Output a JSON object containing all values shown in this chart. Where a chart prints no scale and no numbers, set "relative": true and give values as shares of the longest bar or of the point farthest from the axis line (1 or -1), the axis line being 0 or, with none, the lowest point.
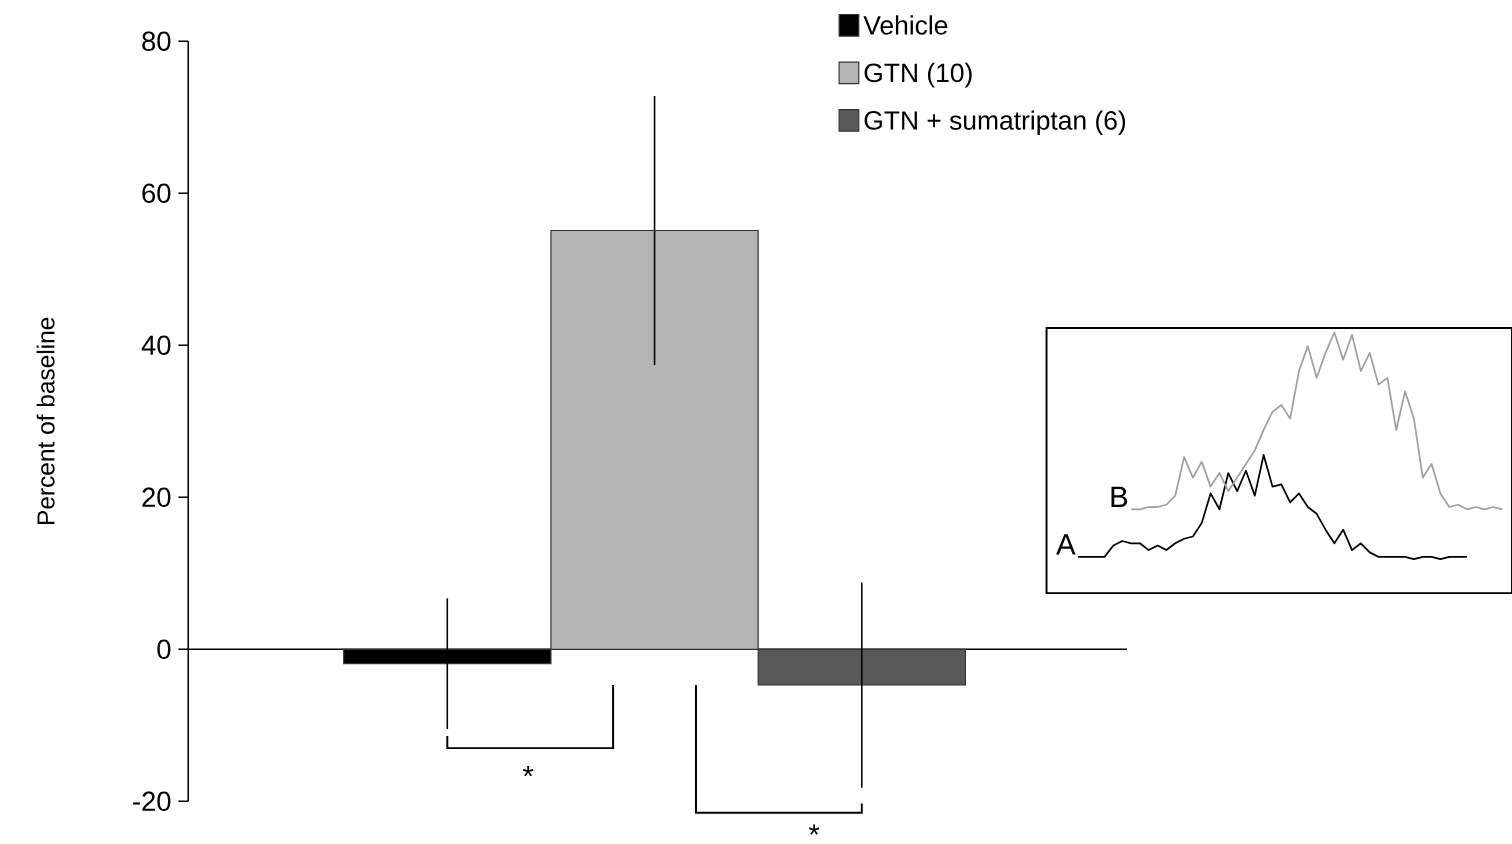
{
  "chart_data": [
    {
      "type": "bar",
      "ylabel": "Percent of baseline",
      "categories": [
        null,
        null,
        null
      ],
      "series": [
        {
          "name": "Vehicle",
          "color": "#000000",
          "values": [
            -1.9,
            null,
            null
          ],
          "errors": [
            8.6,
            null,
            null
          ]
        },
        {
          "name": "GTN (10)",
          "color": "#b4b4b4",
          "values": [
            null,
            55.1,
            null
          ],
          "errors": [
            null,
            17.7,
            null
          ]
        },
        {
          "name": "GTN + sumatriptan (6)",
          "color": "#595959",
          "values": [
            null,
            null,
            -4.7
          ],
          "errors": [
            null,
            null,
            13.5
          ]
        }
      ],
      "ylim": [
        -20,
        80
      ],
      "yticks": [
        -20,
        0,
        20,
        40,
        60,
        80
      ],
      "legend": "top right",
      "annotations": [
        "*",
        "*"
      ]
    },
    {
      "type": "line",
      "relative": true,
      "marker": "none",
      "line_style": "solid",
      "categories": [
        null,
        null,
        null,
        null,
        null,
        null,
        null,
        null,
        null,
        null,
        null,
        null,
        null,
        null,
        null,
        null,
        null,
        null,
        null,
        null,
        null,
        null,
        null,
        null,
        null,
        null,
        null,
        null,
        null,
        null,
        null,
        null,
        null,
        null,
        null,
        null,
        null,
        null,
        null,
        null,
        null,
        null,
        null,
        null,
        null,
        null,
        null,
        null,
        null
      ],
      "series": [
        {
          "color": "#000000",
          "values": [
            0.01,
            0.01,
            0.01,
            0.01,
            0.06,
            0.08,
            0.07,
            0.07,
            0.04,
            0.06,
            0.04,
            0.07,
            0.09,
            0.1,
            0.16,
            0.29,
            0.22,
            0.38,
            0.3,
            0.39,
            0.28,
            0.46,
            0.32,
            0.33,
            0.25,
            0.29,
            0.23,
            0.2,
            0.13,
            0.07,
            0.13,
            0.04,
            0.07,
            0.03,
            0.01,
            0.01,
            0.01,
            0.01,
            0,
            0.01,
            0.01,
            0,
            0.01,
            0.01,
            0.01,
            null,
            null,
            null,
            null
          ]
        },
        {
          "color": "#a0a0a0",
          "values": [
            null,
            null,
            null,
            null,
            null,
            null,
            0.22,
            0.22,
            0.23,
            0.23,
            0.24,
            0.28,
            0.45,
            0.36,
            0.43,
            0.32,
            0.38,
            0.3,
            0.36,
            0.42,
            0.48,
            0.57,
            0.65,
            0.68,
            0.62,
            0.83,
            0.94,
            0.8,
            0.91,
            1,
            0.88,
            0.99,
            0.83,
            0.91,
            0.77,
            0.8,
            0.57,
            0.74,
            0.62,
            0.36,
            0.42,
            0.29,
            0.23,
            0.24,
            0.22,
            0.23,
            0.22,
            0.23,
            0.22
          ]
        }
      ],
      "annotations": [
        "A",
        "B"
      ]
    }
  ]
}
